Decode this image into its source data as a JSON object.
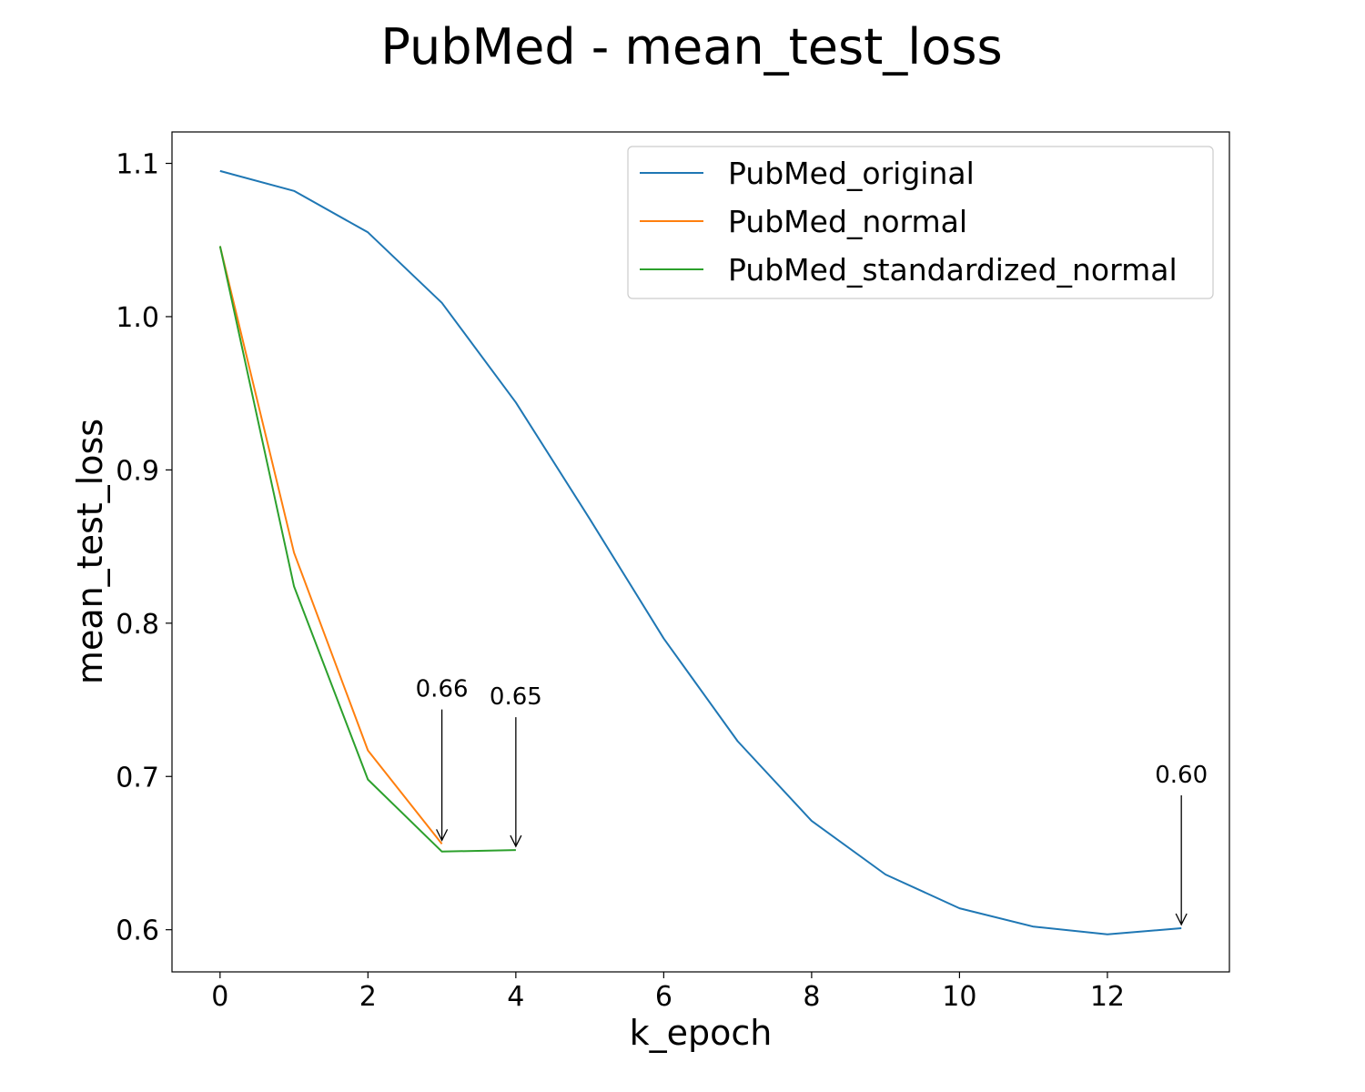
{
  "chart_data": {
    "type": "line",
    "title": "PubMed - mean_test_loss",
    "xlabel": "k_epoch",
    "ylabel": "mean_test_loss",
    "xlim": [
      -0.65,
      13.65
    ],
    "ylim": [
      0.5725,
      1.1205
    ],
    "xticks": [
      0,
      2,
      4,
      6,
      8,
      10,
      12
    ],
    "yticks": [
      0.6,
      0.7,
      0.8,
      0.9,
      1.0,
      1.1
    ],
    "ytick_labels": [
      "0.6",
      "0.7",
      "0.8",
      "0.9",
      "1.0",
      "1.1"
    ],
    "grid": false,
    "legend_position": "upper-right",
    "series": [
      {
        "name": "PubMed_original",
        "color": "#1f77b4",
        "x": [
          0,
          1,
          2,
          3,
          4,
          5,
          6,
          7,
          8,
          9,
          10,
          11,
          12,
          13
        ],
        "y": [
          1.095,
          1.082,
          1.055,
          1.009,
          0.944,
          0.868,
          0.79,
          0.723,
          0.671,
          0.636,
          0.614,
          0.602,
          0.597,
          0.601
        ]
      },
      {
        "name": "PubMed_normal",
        "color": "#ff7f0e",
        "x": [
          0,
          1,
          2,
          3
        ],
        "y": [
          1.046,
          0.846,
          0.717,
          0.656
        ]
      },
      {
        "name": "PubMed_standardized_normal",
        "color": "#2ca02c",
        "x": [
          0,
          1,
          2,
          3,
          4
        ],
        "y": [
          1.046,
          0.824,
          0.698,
          0.651,
          0.652
        ]
      }
    ],
    "annotations": [
      {
        "text": "0.66",
        "x": 3,
        "y": 0.656,
        "text_y": 0.752
      },
      {
        "text": "0.65",
        "x": 4,
        "y": 0.652,
        "text_y": 0.747
      },
      {
        "text": "0.60",
        "x": 13,
        "y": 0.601,
        "text_y": 0.696
      }
    ]
  }
}
